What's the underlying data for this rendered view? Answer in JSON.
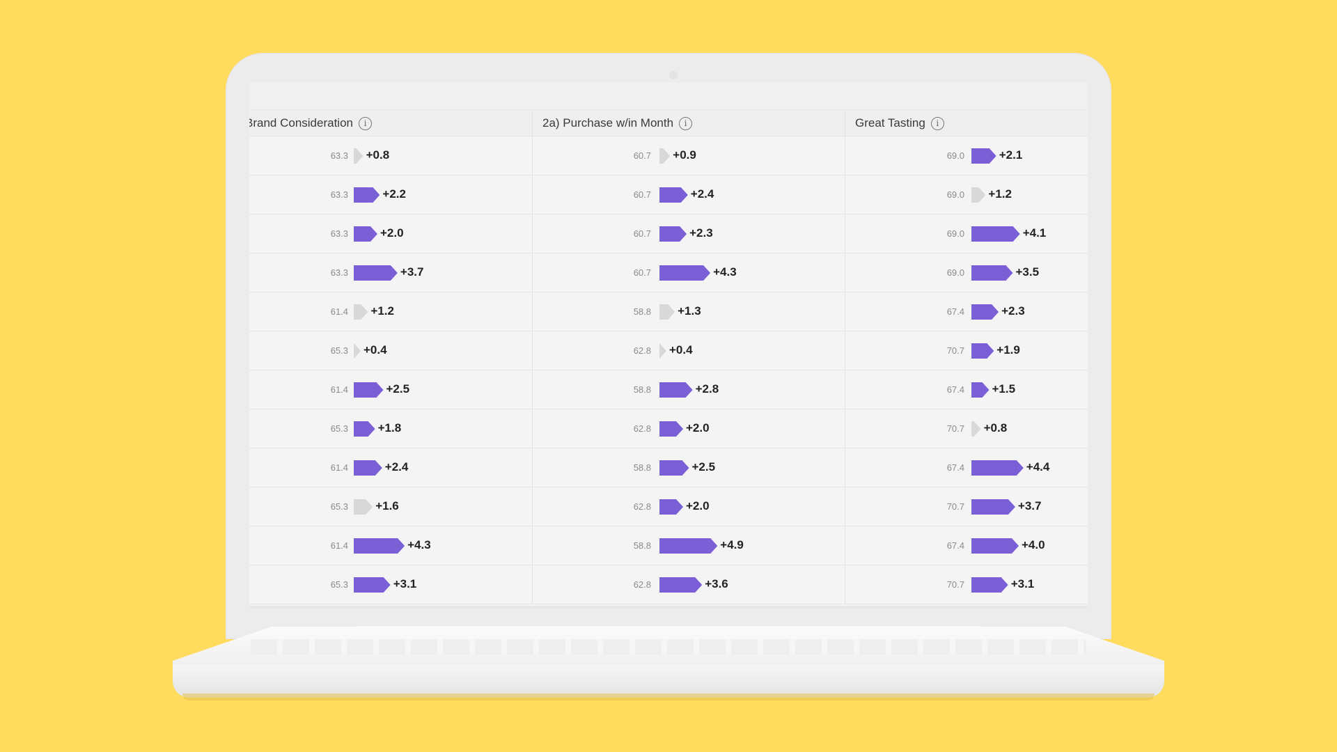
{
  "columns": [
    {
      "label": "Brand Consideration",
      "info_icon": "info-icon"
    },
    {
      "label": "2a) Purchase w/in Month",
      "info_icon": "info-icon"
    },
    {
      "label": "Great Tasting",
      "info_icon": "info-icon"
    }
  ],
  "info_glyph": "i",
  "colors": {
    "background": "#FFDB5E",
    "bar_highlight": "#7a5fd6",
    "bar_neutral": "#d8d8d8"
  },
  "rows": [
    [
      {
        "base": "63.3",
        "delta": "+0.8",
        "value": 0.8,
        "hl": false
      },
      {
        "base": "60.7",
        "delta": "+0.9",
        "value": 0.9,
        "hl": false
      },
      {
        "base": "69.0",
        "delta": "+2.1",
        "value": 2.1,
        "hl": true
      }
    ],
    [
      {
        "base": "63.3",
        "delta": "+2.2",
        "value": 2.2,
        "hl": true
      },
      {
        "base": "60.7",
        "delta": "+2.4",
        "value": 2.4,
        "hl": true
      },
      {
        "base": "69.0",
        "delta": "+1.2",
        "value": 1.2,
        "hl": false
      }
    ],
    [
      {
        "base": "63.3",
        "delta": "+2.0",
        "value": 2.0,
        "hl": true
      },
      {
        "base": "60.7",
        "delta": "+2.3",
        "value": 2.3,
        "hl": true
      },
      {
        "base": "69.0",
        "delta": "+4.1",
        "value": 4.1,
        "hl": true
      }
    ],
    [
      {
        "base": "63.3",
        "delta": "+3.7",
        "value": 3.7,
        "hl": true
      },
      {
        "base": "60.7",
        "delta": "+4.3",
        "value": 4.3,
        "hl": true
      },
      {
        "base": "69.0",
        "delta": "+3.5",
        "value": 3.5,
        "hl": true
      }
    ],
    [
      {
        "base": "61.4",
        "delta": "+1.2",
        "value": 1.2,
        "hl": false
      },
      {
        "base": "58.8",
        "delta": "+1.3",
        "value": 1.3,
        "hl": false
      },
      {
        "base": "67.4",
        "delta": "+2.3",
        "value": 2.3,
        "hl": true
      }
    ],
    [
      {
        "base": "65.3",
        "delta": "+0.4",
        "value": 0.4,
        "hl": false
      },
      {
        "base": "62.8",
        "delta": "+0.4",
        "value": 0.4,
        "hl": false
      },
      {
        "base": "70.7",
        "delta": "+1.9",
        "value": 1.9,
        "hl": true
      }
    ],
    [
      {
        "base": "61.4",
        "delta": "+2.5",
        "value": 2.5,
        "hl": true
      },
      {
        "base": "58.8",
        "delta": "+2.8",
        "value": 2.8,
        "hl": true
      },
      {
        "base": "67.4",
        "delta": "+1.5",
        "value": 1.5,
        "hl": true
      }
    ],
    [
      {
        "base": "65.3",
        "delta": "+1.8",
        "value": 1.8,
        "hl": true
      },
      {
        "base": "62.8",
        "delta": "+2.0",
        "value": 2.0,
        "hl": true
      },
      {
        "base": "70.7",
        "delta": "+0.8",
        "value": 0.8,
        "hl": false
      }
    ],
    [
      {
        "base": "61.4",
        "delta": "+2.4",
        "value": 2.4,
        "hl": true
      },
      {
        "base": "58.8",
        "delta": "+2.5",
        "value": 2.5,
        "hl": true
      },
      {
        "base": "67.4",
        "delta": "+4.4",
        "value": 4.4,
        "hl": true
      }
    ],
    [
      {
        "base": "65.3",
        "delta": "+1.6",
        "value": 1.6,
        "hl": false
      },
      {
        "base": "62.8",
        "delta": "+2.0",
        "value": 2.0,
        "hl": true
      },
      {
        "base": "70.7",
        "delta": "+3.7",
        "value": 3.7,
        "hl": true
      }
    ],
    [
      {
        "base": "61.4",
        "delta": "+4.3",
        "value": 4.3,
        "hl": true
      },
      {
        "base": "58.8",
        "delta": "+4.9",
        "value": 4.9,
        "hl": true
      },
      {
        "base": "67.4",
        "delta": "+4.0",
        "value": 4.0,
        "hl": true
      }
    ],
    [
      {
        "base": "65.3",
        "delta": "+3.1",
        "value": 3.1,
        "hl": true
      },
      {
        "base": "62.8",
        "delta": "+3.6",
        "value": 3.6,
        "hl": true
      },
      {
        "base": "70.7",
        "delta": "+3.1",
        "value": 3.1,
        "hl": true
      }
    ]
  ]
}
